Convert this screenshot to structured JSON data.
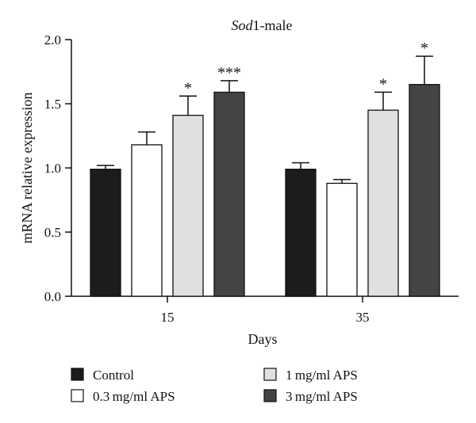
{
  "chart_data": {
    "type": "bar",
    "title_italic": "Sod",
    "title_rest": "1-male",
    "xlabel": "Days",
    "ylabel": "mRNA relative expression",
    "ylim": [
      0,
      2.0
    ],
    "yticks": [
      "0.0",
      "0.5",
      "1.0",
      "1.5",
      "2.0"
    ],
    "categories": [
      "15",
      "35"
    ],
    "series": [
      {
        "name": "Control",
        "color": "#1c1c1c",
        "values": [
          0.99,
          0.99
        ],
        "errors": [
          0.03,
          0.05
        ],
        "sig": [
          "",
          ""
        ]
      },
      {
        "name": "0.3 mg/ml APS",
        "color": "#ffffff",
        "values": [
          1.18,
          0.88
        ],
        "errors": [
          0.1,
          0.03
        ],
        "sig": [
          "",
          ""
        ]
      },
      {
        "name": "1 mg/ml APS",
        "color": "#e0e0e0",
        "values": [
          1.41,
          1.45
        ],
        "errors": [
          0.15,
          0.14
        ],
        "sig": [
          "*",
          "*"
        ]
      },
      {
        "name": "3 mg/ml APS",
        "color": "#444444",
        "values": [
          1.59,
          1.65
        ],
        "errors": [
          0.09,
          0.22
        ],
        "sig": [
          "***",
          "*"
        ]
      }
    ],
    "legend_position": "bottom"
  }
}
